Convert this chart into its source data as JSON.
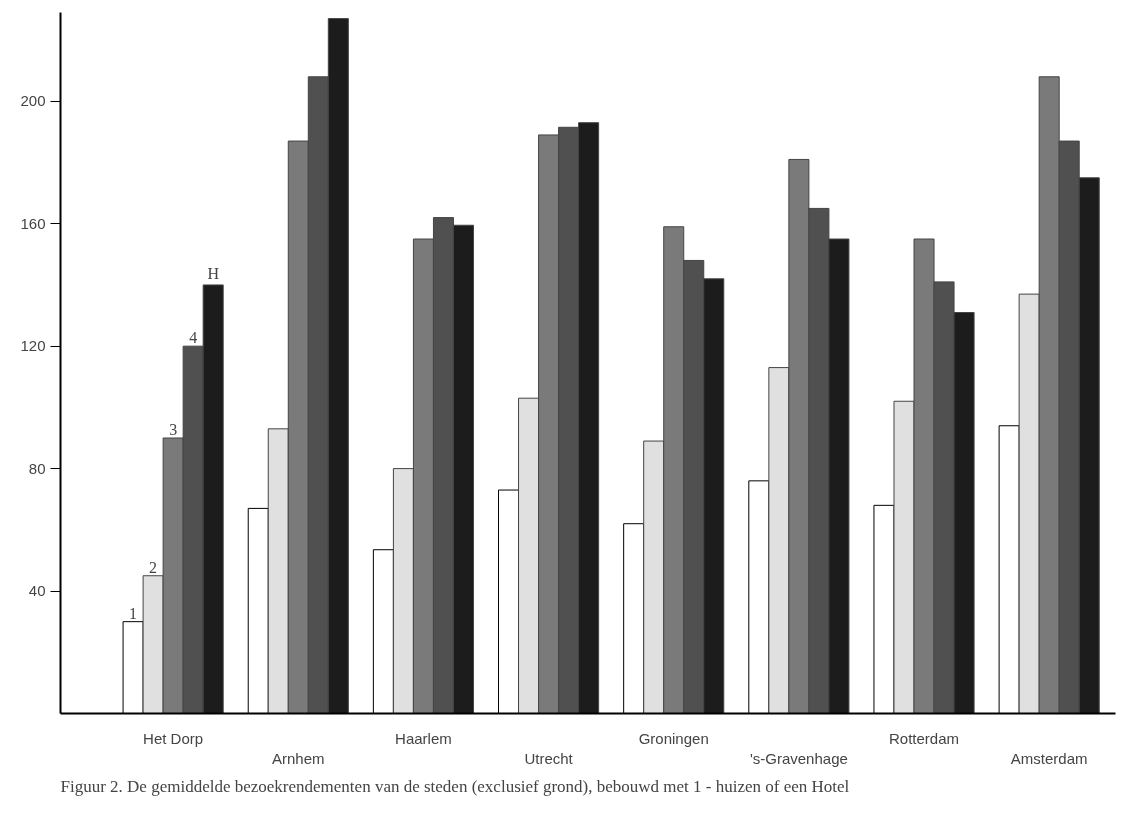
{
  "chart_data": {
    "type": "bar",
    "categories": [
      "Het Dorp",
      "Arnhem",
      "Haarlem",
      "Utrecht",
      "Groningen",
      "'s-Gravenhage",
      "Rotterdam",
      "Amsterdam"
    ],
    "series": [
      {
        "name": "1",
        "color": "#ffffff",
        "values": [
          30,
          67,
          53.5,
          73,
          62,
          76,
          68,
          94
        ]
      },
      {
        "name": "2",
        "color": "#e0e0e0",
        "values": [
          45,
          93,
          80,
          103,
          89,
          113,
          102,
          137
        ]
      },
      {
        "name": "3",
        "color": "#7a7a7a",
        "values": [
          90,
          187,
          155,
          189,
          159,
          181,
          155,
          208
        ]
      },
      {
        "name": "4",
        "color": "#505050",
        "values": [
          120,
          208,
          162,
          191.5,
          148,
          165,
          141,
          187
        ]
      },
      {
        "name": "H",
        "color": "#1c1c1c",
        "values": [
          140,
          227,
          159.5,
          193,
          142,
          155,
          131,
          175
        ]
      }
    ],
    "ylim": [
      0,
      229
    ],
    "yticks": [
      40,
      80,
      120,
      160,
      200
    ],
    "grid": false,
    "annotations": [
      "Figuur 2. De gemiddelde bezoekrendementen van de steden (exclusief grond), bebouwd met 1 - huizen of een Hotel"
    ]
  }
}
